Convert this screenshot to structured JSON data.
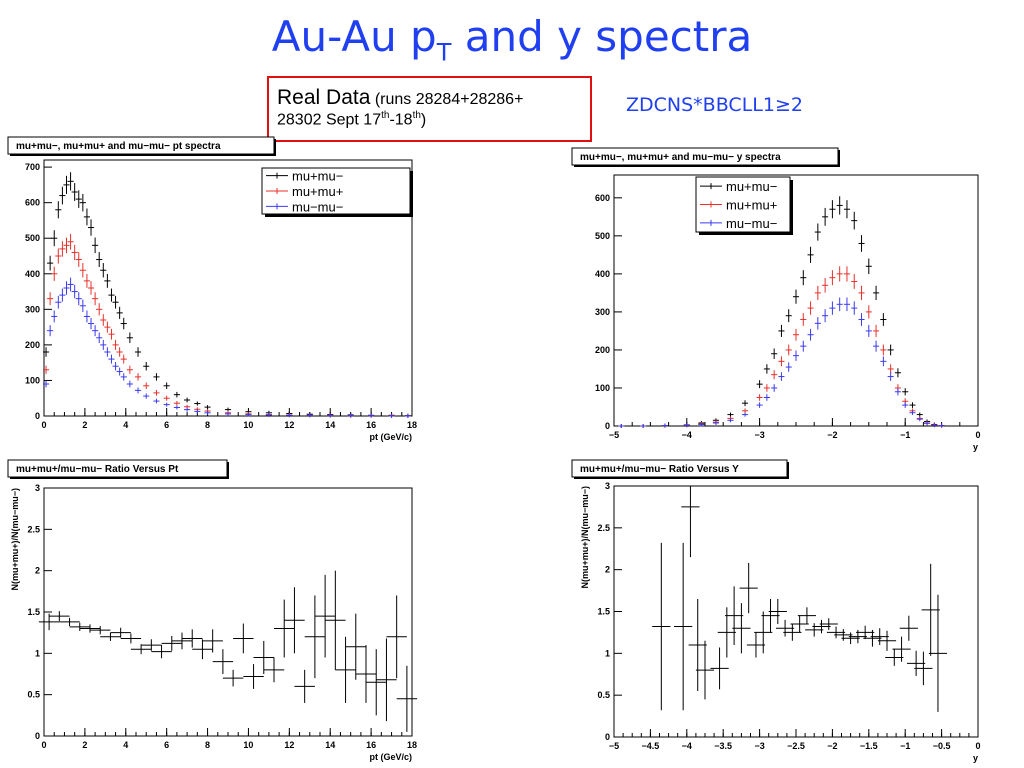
{
  "slide": {
    "title_main": "Au-Au p",
    "title_sub": "T",
    "title_rest": " and y spectra",
    "realdata_big": "Real Data",
    "realdata_runs1": " (runs 28284+28286+",
    "realdata_runs2a": "28302 Sept 17",
    "realdata_th1": "th",
    "realdata_runs2b": "-18",
    "realdata_th2": "th",
    "realdata_runs2c": ")",
    "trigger": "ZDCNS*BBCLL1≥2"
  },
  "colors": {
    "black": "#000000",
    "red": "#e8302a",
    "blue": "#3b3bf0",
    "title_blue": "#1f3ff0",
    "box_red": "#e01010"
  },
  "chart_data": [
    {
      "id": "pt_spectra",
      "type": "line",
      "title": "mu+mu−, mu+mu+ and mu−mu− pt spectra",
      "xlabel": "pt (GeV/c)",
      "ylabel": "",
      "xlim": [
        0,
        18
      ],
      "ylim": [
        0,
        720
      ],
      "xticks": [
        0,
        2,
        4,
        6,
        8,
        10,
        12,
        14,
        16,
        18
      ],
      "yticks": [
        0,
        100,
        200,
        300,
        400,
        500,
        600,
        700
      ],
      "legend": "top-right",
      "series": [
        {
          "name": "mu+mu−",
          "color": "#000000",
          "x": [
            0.1,
            0.3,
            0.5,
            0.7,
            0.9,
            1.1,
            1.3,
            1.5,
            1.7,
            1.9,
            2.1,
            2.3,
            2.5,
            2.7,
            2.9,
            3.1,
            3.3,
            3.5,
            3.7,
            3.9,
            4.2,
            4.6,
            5.0,
            5.5,
            6.0,
            6.5,
            7.0,
            7.5,
            8.0,
            9.0,
            10.0,
            11.0,
            12.0,
            13.0,
            14.0,
            15.0,
            16.0,
            17.0,
            17.8
          ],
          "y": [
            180,
            430,
            500,
            580,
            620,
            650,
            660,
            630,
            610,
            600,
            560,
            530,
            480,
            440,
            410,
            380,
            340,
            320,
            290,
            260,
            220,
            180,
            140,
            110,
            85,
            60,
            45,
            35,
            25,
            18,
            12,
            9,
            7,
            5,
            4,
            3,
            2,
            2,
            1
          ]
        },
        {
          "name": "mu+mu+",
          "color": "#e8302a",
          "x": [
            0.1,
            0.3,
            0.5,
            0.7,
            0.9,
            1.1,
            1.3,
            1.5,
            1.7,
            1.9,
            2.1,
            2.3,
            2.5,
            2.7,
            2.9,
            3.1,
            3.3,
            3.5,
            3.7,
            3.9,
            4.2,
            4.6,
            5.0,
            5.5,
            6.0,
            6.5,
            7.0,
            7.5,
            8.0,
            9.0,
            10.0,
            11.0,
            12.0,
            13.0,
            14.0,
            15.0,
            16.0,
            17.0,
            17.8
          ],
          "y": [
            130,
            330,
            400,
            450,
            470,
            480,
            490,
            460,
            440,
            410,
            380,
            360,
            330,
            300,
            270,
            250,
            230,
            200,
            180,
            160,
            130,
            110,
            85,
            65,
            50,
            36,
            26,
            19,
            14,
            9,
            6,
            4,
            3,
            2,
            2,
            1,
            1,
            1,
            0
          ]
        },
        {
          "name": "mu−mu−",
          "color": "#3b3bf0",
          "x": [
            0.1,
            0.3,
            0.5,
            0.7,
            0.9,
            1.1,
            1.3,
            1.5,
            1.7,
            1.9,
            2.1,
            2.3,
            2.5,
            2.7,
            2.9,
            3.1,
            3.3,
            3.5,
            3.7,
            3.9,
            4.2,
            4.6,
            5.0,
            5.5,
            6.0,
            6.5,
            7.0,
            7.5,
            8.0,
            9.0,
            10.0,
            11.0,
            12.0,
            13.0,
            14.0,
            15.0,
            16.0,
            17.0,
            17.8
          ],
          "y": [
            90,
            240,
            280,
            320,
            340,
            360,
            370,
            350,
            330,
            310,
            280,
            260,
            240,
            220,
            200,
            180,
            160,
            140,
            125,
            110,
            90,
            72,
            56,
            42,
            32,
            24,
            18,
            13,
            9,
            6,
            4,
            3,
            2,
            2,
            1,
            1,
            1,
            0,
            0
          ]
        }
      ]
    },
    {
      "id": "y_spectra",
      "type": "line",
      "title": "mu+mu−, mu+mu+ and mu−mu− y spectra",
      "xlabel": "y",
      "ylabel": "",
      "xlim": [
        -5,
        0
      ],
      "ylim": [
        0,
        660
      ],
      "xticks": [
        -5,
        -4,
        -3,
        -2,
        -1,
        0
      ],
      "yticks": [
        0,
        100,
        200,
        300,
        400,
        500,
        600
      ],
      "legend": "top-left",
      "series": [
        {
          "name": "mu+mu−",
          "color": "#000000",
          "x": [
            -4.9,
            -4.6,
            -4.3,
            -4.0,
            -3.8,
            -3.6,
            -3.4,
            -3.2,
            -3.0,
            -2.9,
            -2.8,
            -2.7,
            -2.6,
            -2.5,
            -2.4,
            -2.3,
            -2.2,
            -2.1,
            -2.0,
            -1.9,
            -1.8,
            -1.7,
            -1.6,
            -1.5,
            -1.4,
            -1.3,
            -1.2,
            -1.1,
            -1.0,
            -0.9,
            -0.8,
            -0.7,
            -0.6,
            -0.5
          ],
          "y": [
            0,
            0,
            1,
            3,
            8,
            15,
            30,
            60,
            110,
            150,
            190,
            250,
            290,
            340,
            390,
            450,
            510,
            550,
            570,
            580,
            570,
            540,
            480,
            420,
            350,
            280,
            200,
            140,
            90,
            55,
            30,
            12,
            4,
            1
          ]
        },
        {
          "name": "mu+mu+",
          "color": "#e8302a",
          "x": [
            -4.9,
            -4.6,
            -4.3,
            -4.0,
            -3.8,
            -3.6,
            -3.4,
            -3.2,
            -3.0,
            -2.9,
            -2.8,
            -2.7,
            -2.6,
            -2.5,
            -2.4,
            -2.3,
            -2.2,
            -2.1,
            -2.0,
            -1.9,
            -1.8,
            -1.7,
            -1.6,
            -1.5,
            -1.4,
            -1.3,
            -1.2,
            -1.1,
            -1.0,
            -0.9,
            -0.8,
            -0.7,
            -0.6,
            -0.5
          ],
          "y": [
            0,
            0,
            1,
            2,
            5,
            10,
            20,
            40,
            75,
            100,
            135,
            170,
            200,
            240,
            280,
            310,
            350,
            370,
            390,
            400,
            400,
            380,
            350,
            300,
            250,
            200,
            150,
            100,
            65,
            40,
            20,
            8,
            3,
            1
          ]
        },
        {
          "name": "mu−mu−",
          "color": "#3b3bf0",
          "x": [
            -4.9,
            -4.6,
            -4.3,
            -4.0,
            -3.8,
            -3.6,
            -3.4,
            -3.2,
            -3.0,
            -2.9,
            -2.8,
            -2.7,
            -2.6,
            -2.5,
            -2.4,
            -2.3,
            -2.2,
            -2.1,
            -2.0,
            -1.9,
            -1.8,
            -1.7,
            -1.6,
            -1.5,
            -1.4,
            -1.3,
            -1.2,
            -1.1,
            -1.0,
            -0.9,
            -0.8,
            -0.7,
            -0.6,
            -0.5
          ],
          "y": [
            0,
            0,
            1,
            2,
            4,
            8,
            15,
            30,
            55,
            75,
            100,
            130,
            155,
            185,
            210,
            240,
            270,
            290,
            310,
            320,
            320,
            310,
            280,
            250,
            210,
            170,
            130,
            90,
            55,
            35,
            18,
            7,
            2,
            1
          ]
        }
      ]
    },
    {
      "id": "ratio_pt",
      "type": "scatter",
      "title": "mu+mu+/mu−mu− Ratio Versus Pt",
      "xlabel": "pt (GeV/c)",
      "ylabel": "N(mu+mu+)/N(mu−mu−)",
      "xlim": [
        0,
        18
      ],
      "ylim": [
        0,
        3
      ],
      "xticks": [
        0,
        2,
        4,
        6,
        8,
        10,
        12,
        14,
        16,
        18
      ],
      "yticks": [
        0,
        0.5,
        1,
        1.5,
        2,
        2.5,
        3
      ],
      "ytick_labels": [
        "0",
        "0.5",
        "1",
        "1.5",
        "2",
        "2.5",
        "3"
      ],
      "points": {
        "x": [
          0.25,
          0.75,
          1.25,
          1.75,
          2.25,
          2.75,
          3.25,
          3.75,
          4.25,
          4.75,
          5.25,
          5.75,
          6.25,
          6.75,
          7.25,
          7.75,
          8.25,
          8.75,
          9.25,
          9.75,
          10.25,
          10.75,
          11.25,
          11.75,
          12.25,
          12.75,
          13.25,
          13.75,
          14.25,
          14.75,
          15.25,
          15.75,
          16.25,
          16.75,
          17.25,
          17.75
        ],
        "y": [
          1.38,
          1.45,
          1.38,
          1.32,
          1.3,
          1.28,
          1.2,
          1.25,
          1.18,
          1.05,
          1.1,
          1.02,
          1.12,
          1.15,
          1.18,
          1.05,
          1.15,
          0.9,
          0.7,
          1.18,
          0.72,
          0.95,
          0.8,
          1.3,
          1.4,
          0.6,
          1.2,
          1.45,
          1.4,
          0.8,
          1.08,
          0.75,
          0.65,
          0.68,
          1.2,
          0.45
        ],
        "err": [
          0.1,
          0.06,
          0.05,
          0.05,
          0.05,
          0.05,
          0.05,
          0.06,
          0.06,
          0.06,
          0.07,
          0.08,
          0.09,
          0.1,
          0.11,
          0.12,
          0.14,
          0.15,
          0.1,
          0.18,
          0.15,
          0.2,
          0.15,
          0.35,
          0.4,
          0.2,
          0.5,
          0.5,
          0.6,
          0.4,
          0.4,
          0.35,
          0.4,
          0.5,
          0.5,
          0.4
        ]
      }
    },
    {
      "id": "ratio_y",
      "type": "scatter",
      "title": "mu+mu+/mu−mu− Ratio Versus Y",
      "xlabel": "y",
      "ylabel": "N(mu+mu+)/N(mu−mu−)",
      "xlim": [
        -5,
        0
      ],
      "ylim": [
        0,
        3
      ],
      "xticks": [
        -5,
        -4.5,
        -4,
        -3.5,
        -3,
        -2.5,
        -2,
        -1.5,
        -1,
        -0.5,
        0
      ],
      "xtick_labels": [
        "−5",
        "−4.5",
        "−4",
        "−3.5",
        "−3",
        "−2.5",
        "−2",
        "−1.5",
        "−1",
        "−0.5",
        "0"
      ],
      "yticks": [
        0,
        0.5,
        1,
        1.5,
        2,
        2.5,
        3
      ],
      "ytick_labels": [
        "0",
        "0.5",
        "1",
        "1.5",
        "2",
        "2.5",
        "3"
      ],
      "points": {
        "x": [
          -4.35,
          -4.05,
          -3.95,
          -3.85,
          -3.75,
          -3.55,
          -3.45,
          -3.35,
          -3.25,
          -3.15,
          -3.05,
          -2.95,
          -2.85,
          -2.75,
          -2.65,
          -2.55,
          -2.45,
          -2.35,
          -2.25,
          -2.15,
          -2.05,
          -1.95,
          -1.85,
          -1.75,
          -1.65,
          -1.55,
          -1.45,
          -1.35,
          -1.25,
          -1.15,
          -1.05,
          -0.95,
          -0.85,
          -0.75,
          -0.65,
          -0.55
        ],
        "y": [
          1.32,
          1.32,
          2.75,
          1.1,
          0.8,
          0.82,
          1.25,
          1.45,
          1.3,
          1.78,
          1.1,
          1.25,
          1.45,
          1.5,
          1.3,
          1.25,
          1.35,
          1.45,
          1.28,
          1.32,
          1.35,
          1.25,
          1.22,
          1.18,
          1.2,
          1.25,
          1.18,
          1.2,
          1.15,
          0.95,
          1.05,
          1.3,
          0.88,
          0.82,
          1.52,
          1.0
        ],
        "err": [
          1.0,
          1.0,
          0.6,
          0.55,
          0.35,
          0.25,
          0.3,
          0.35,
          0.3,
          0.3,
          0.15,
          0.25,
          0.2,
          0.15,
          0.1,
          0.1,
          0.1,
          0.1,
          0.08,
          0.08,
          0.07,
          0.07,
          0.07,
          0.07,
          0.08,
          0.08,
          0.1,
          0.1,
          0.12,
          0.1,
          0.15,
          0.15,
          0.15,
          0.2,
          0.55,
          0.7
        ]
      }
    }
  ]
}
